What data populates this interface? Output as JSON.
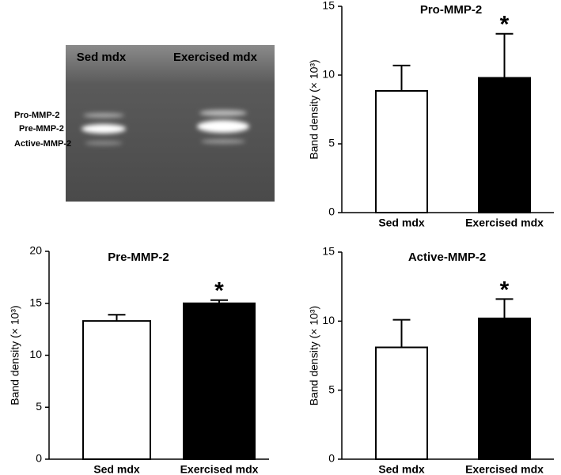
{
  "gel": {
    "lanes": [
      "Sed mdx",
      "Exercised mdx"
    ],
    "bands": [
      "Pro-MMP-2",
      "Pre-MMP-2",
      "Active-MMP-2"
    ]
  },
  "chart_data": [
    {
      "type": "bar",
      "title": "Pro-MMP-2",
      "ylabel": "Band density (× 10³)",
      "categories": [
        "Sed mdx",
        "Exercised mdx"
      ],
      "values": [
        8.85,
        9.8
      ],
      "errors": [
        1.85,
        3.2
      ],
      "colors": [
        "#ffffff",
        "#000000"
      ],
      "significance": [
        null,
        "*"
      ],
      "ylim": [
        0,
        15
      ],
      "yticks": [
        0,
        5,
        10,
        15
      ]
    },
    {
      "type": "bar",
      "title": "Pre-MMP-2",
      "ylabel": "Band density (× 10³)",
      "categories": [
        "Sed mdx",
        "Exercised mdx"
      ],
      "values": [
        13.3,
        15.0
      ],
      "errors": [
        0.6,
        0.3
      ],
      "colors": [
        "#ffffff",
        "#000000"
      ],
      "significance": [
        null,
        "*"
      ],
      "ylim": [
        0,
        20
      ],
      "yticks": [
        0,
        5,
        10,
        15,
        20
      ]
    },
    {
      "type": "bar",
      "title": "Active-MMP-2",
      "ylabel": "Band density (× 10³)",
      "categories": [
        "Sed mdx",
        "Exercised mdx"
      ],
      "values": [
        8.1,
        10.2
      ],
      "errors": [
        2.0,
        1.4
      ],
      "colors": [
        "#ffffff",
        "#000000"
      ],
      "significance": [
        null,
        "*"
      ],
      "ylim": [
        0,
        15
      ],
      "yticks": [
        0,
        5,
        10,
        15
      ]
    }
  ]
}
